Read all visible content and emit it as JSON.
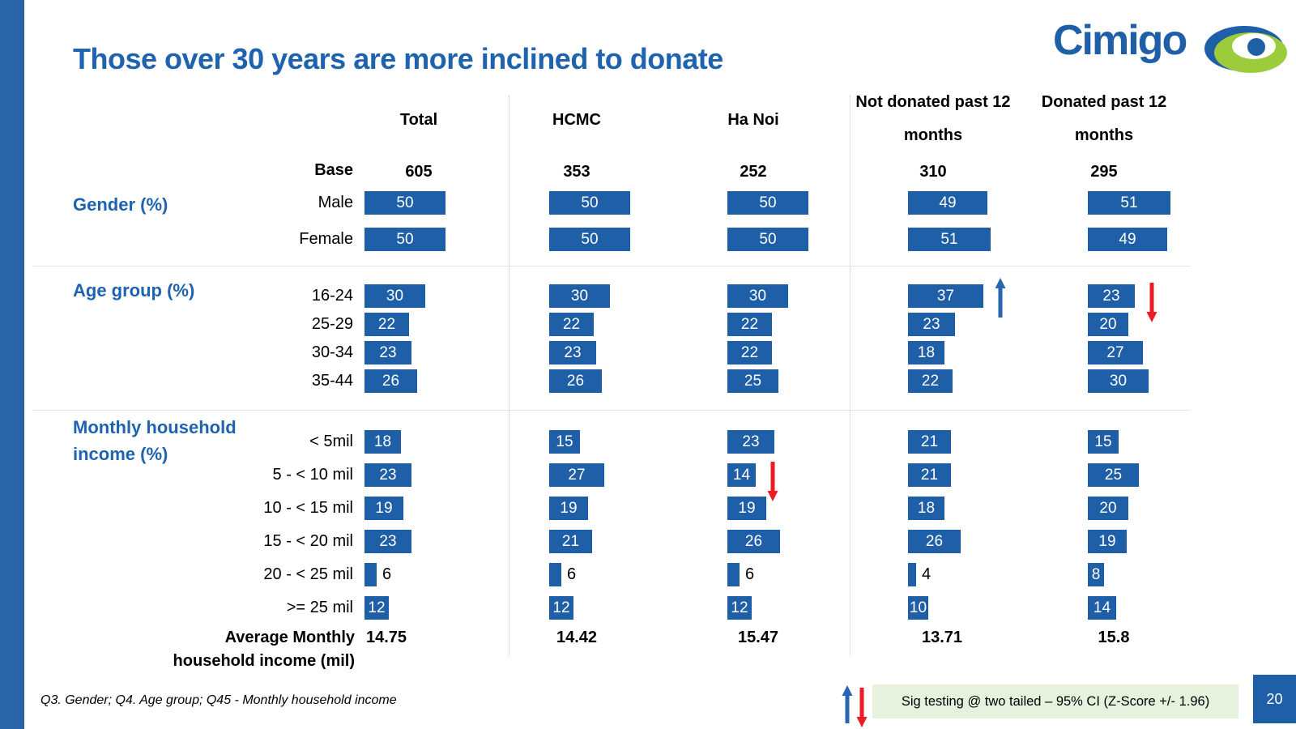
{
  "slide": {
    "title": "Those over 30 years are more inclined to donate",
    "logo_text": "Cimigo",
    "page_number": "20",
    "footnote": "Q3. Gender; Q4. Age group; Q45 - Monthly household income",
    "sig_note": "Sig testing @ two tailed – 95% CI (Z-Score +/- 1.96)"
  },
  "header": {
    "base_label": "Base",
    "columns": [
      {
        "line1": "Total",
        "line2": ""
      },
      {
        "line1": "HCMC",
        "line2": ""
      },
      {
        "line1": "Ha Noi",
        "line2": ""
      },
      {
        "line1": "Not donated past 12",
        "line2": "months"
      },
      {
        "line1": "Donated past 12",
        "line2": "months"
      }
    ]
  },
  "average_label": {
    "line1": "Average Monthly",
    "line2": "household income (mil)"
  },
  "colors": {
    "bar_blue": "#1F5FA8",
    "accent_blue": "#1E63AF",
    "logo_green": "#9CCB3B",
    "sig_up_blue": "#2A65B0",
    "sig_down_red": "#EC1C24",
    "sig_box_bg": "#E6F1DE"
  },
  "chart_data": {
    "type": "bar",
    "orientation": "horizontal",
    "title": "Those over 30 years are more inclined to donate",
    "columns": [
      "Total",
      "HCMC",
      "Ha Noi",
      "Not donated past 12 months",
      "Donated past 12 months"
    ],
    "base": [
      605,
      353,
      252,
      310,
      295
    ],
    "sections": [
      {
        "title": "Gender (%)",
        "categories": [
          "Male",
          "Female"
        ],
        "series": [
          {
            "name": "Total",
            "values": [
              50,
              50
            ]
          },
          {
            "name": "HCMC",
            "values": [
              50,
              50
            ]
          },
          {
            "name": "Ha Noi",
            "values": [
              50,
              50
            ]
          },
          {
            "name": "Not donated past 12 months",
            "values": [
              49,
              51
            ]
          },
          {
            "name": "Donated past 12 months",
            "values": [
              51,
              49
            ]
          }
        ]
      },
      {
        "title": "Age group (%)",
        "categories": [
          "16-24",
          "25-29",
          "30-34",
          "35-44"
        ],
        "series": [
          {
            "name": "Total",
            "values": [
              30,
              22,
              23,
              26
            ]
          },
          {
            "name": "HCMC",
            "values": [
              30,
              22,
              23,
              26
            ]
          },
          {
            "name": "Ha Noi",
            "values": [
              30,
              22,
              22,
              25
            ]
          },
          {
            "name": "Not donated past 12 months",
            "values": [
              37,
              23,
              18,
              22
            ]
          },
          {
            "name": "Donated past 12 months",
            "values": [
              23,
              20,
              27,
              30
            ]
          }
        ]
      },
      {
        "title": "Monthly household income (%)",
        "categories": [
          "< 5mil",
          "5 - < 10 mil",
          "10 - < 15 mil",
          "15 - < 20 mil",
          "20 - < 25 mil",
          ">= 25 mil"
        ],
        "series": [
          {
            "name": "Total",
            "values": [
              18,
              23,
              19,
              23,
              6,
              12
            ]
          },
          {
            "name": "HCMC",
            "values": [
              15,
              27,
              19,
              21,
              6,
              12
            ]
          },
          {
            "name": "Ha Noi",
            "values": [
              23,
              14,
              19,
              26,
              6,
              12
            ]
          },
          {
            "name": "Not donated past 12 months",
            "values": [
              21,
              21,
              18,
              26,
              4,
              10
            ]
          },
          {
            "name": "Donated past 12 months",
            "values": [
              15,
              25,
              20,
              19,
              8,
              14
            ]
          }
        ]
      }
    ],
    "averages": {
      "label": "Average Monthly household income (mil)",
      "values": [
        "14.75",
        "14.42",
        "15.47",
        "13.71",
        "15.8"
      ]
    },
    "significance": [
      {
        "section": "Age group (%)",
        "category": "16-24",
        "column": "Not donated past 12 months",
        "direction": "up"
      },
      {
        "section": "Age group (%)",
        "category": "16-24",
        "column": "Donated past 12 months",
        "direction": "down"
      },
      {
        "section": "Monthly household income (%)",
        "category": "5 - < 10 mil",
        "column": "Ha Noi",
        "direction": "down"
      }
    ],
    "legend": {
      "note": "Sig testing @ two tailed – 95% CI (Z-Score +/- 1.96)"
    },
    "bar_color": "#1F5FA8"
  }
}
